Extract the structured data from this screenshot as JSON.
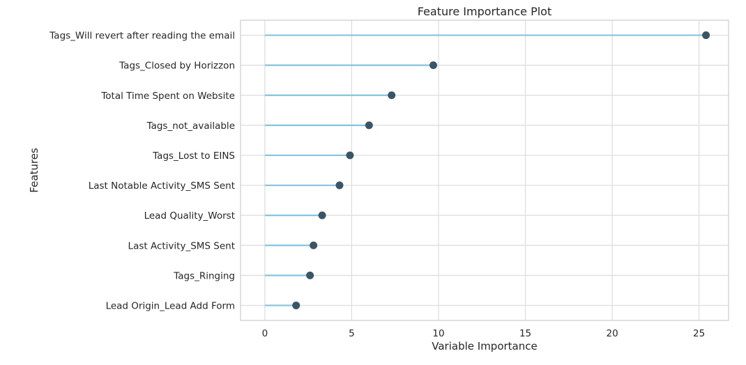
{
  "chart_data": {
    "type": "lollipop",
    "title": "Feature Importance Plot",
    "xlabel": "Variable Importance",
    "ylabel": "Features",
    "xlim": [
      -1.4,
      26.7
    ],
    "xticks": [
      0,
      5,
      10,
      15,
      20,
      25
    ],
    "grid": true,
    "categories": [
      "Tags_Will revert after reading the email",
      "Tags_Closed by Horizzon",
      "Total Time Spent on Website",
      "Tags_not_available",
      "Tags_Lost to EINS",
      "Last Notable Activity_SMS Sent",
      "Lead Quality_Worst",
      "Last Activity_SMS Sent",
      "Tags_Ringing",
      "Lead Origin_Lead Add Form"
    ],
    "values": [
      25.4,
      9.7,
      7.3,
      6.0,
      4.9,
      4.3,
      3.3,
      2.8,
      2.6,
      1.8
    ],
    "colors": {
      "stem": "#86c3de",
      "marker": "#3a5566"
    }
  }
}
